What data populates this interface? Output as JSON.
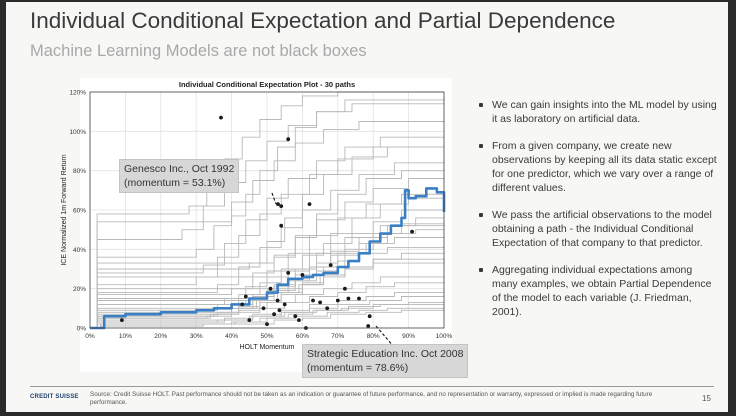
{
  "slide": {
    "title": "Individual Conditional Expectation and Partial Dependence",
    "subtitle": "Machine Learning Models are not black boxes",
    "page_number": "15",
    "logo_text": "CREDIT SUISSE",
    "source_note": "Source: Credit Suisse HOLT. Past performance should not be taken as an indication or guarantee of future performance, and no representation or warranty, expressed or implied is made regarding future performance."
  },
  "bullets": [
    "We can gain insights into the ML model by using it as laboratory on artificial data.",
    "From a given company, we create new observations by keeping all its data static except for one predictor, which we vary over a range of different values.",
    "We pass the artificial observations to the model obtaining a path - the Individual Conditional Expectation of that company to that predictor.",
    "Aggregating individual expectations among many examples, we obtain Partial Dependence of the model to each variable (J. Friedman, 2001)."
  ],
  "callouts": {
    "genesco": {
      "line1": "Genesco Inc., Oct 1992",
      "line2": "(momentum = 53.1%)"
    },
    "strategic": {
      "line1": "Strategic Education Inc. Oct 2008",
      "line2": "(momentum = 78.6%)"
    }
  },
  "colors": {
    "ice_lines": "#b8b8b8",
    "pdp_line": "#3a7fc4",
    "points": "#1a1a1a",
    "text": "#3a3a3a"
  },
  "chart_data": {
    "type": "line",
    "title": "Individual Conditional Expectation Plot - 30 paths",
    "xlabel": "HOLT Momentum",
    "ylabel": "ICE Normalized 1m Forward Return",
    "xlim": [
      0,
      100
    ],
    "ylim": [
      0,
      120
    ],
    "x_ticks": [
      "0%",
      "10%",
      "20%",
      "30%",
      "40%",
      "50%",
      "60%",
      "70%",
      "80%",
      "90%",
      "100%"
    ],
    "y_ticks": [
      "0%",
      "20%",
      "40%",
      "60%",
      "80%",
      "100%",
      "120%"
    ],
    "grid": true,
    "partial_dependence": {
      "x": [
        0,
        4,
        10,
        20,
        30,
        35,
        40,
        45,
        50,
        53,
        56,
        60,
        63,
        66,
        70,
        73,
        76,
        79,
        82,
        85,
        88,
        89,
        90,
        92,
        95,
        98,
        100
      ],
      "y": [
        0,
        6,
        7,
        8,
        9,
        10,
        12,
        15,
        18,
        22,
        25,
        26,
        27,
        28,
        31,
        34,
        38,
        44,
        48,
        52,
        56,
        70,
        66,
        67,
        71,
        69,
        59
      ]
    },
    "ice_paths": [
      {
        "x": [
          0,
          2,
          30,
          38,
          46,
          55,
          64,
          73,
          82,
          100
        ],
        "y": [
          0,
          3,
          3,
          4,
          6,
          8,
          9,
          11,
          12,
          14
        ]
      },
      {
        "x": [
          0,
          2,
          40,
          48,
          56,
          63,
          71,
          80,
          90,
          100
        ],
        "y": [
          0,
          2,
          3,
          5,
          7,
          9,
          10,
          12,
          13,
          13
        ]
      },
      {
        "x": [
          0,
          3,
          32,
          41,
          50,
          58,
          67,
          76,
          84,
          100
        ],
        "y": [
          0,
          1,
          2,
          3,
          5,
          6,
          8,
          9,
          10,
          11
        ]
      },
      {
        "x": [
          0,
          3,
          44,
          52,
          60,
          68,
          78,
          88,
          100
        ],
        "y": [
          0,
          2,
          2,
          4,
          5,
          7,
          8,
          9,
          10
        ]
      },
      {
        "x": [
          0,
          2,
          36,
          45,
          54,
          62,
          70,
          79,
          88,
          100
        ],
        "y": [
          0,
          3,
          4,
          6,
          8,
          10,
          12,
          14,
          16,
          17
        ]
      },
      {
        "x": [
          0,
          2,
          33,
          40,
          48,
          55,
          62,
          70,
          78,
          86,
          100
        ],
        "y": [
          0,
          5,
          6,
          8,
          10,
          13,
          16,
          18,
          21,
          23,
          24
        ]
      },
      {
        "x": [
          0,
          2,
          38,
          46,
          54,
          62,
          70,
          78,
          86,
          100
        ],
        "y": [
          0,
          4,
          5,
          7,
          9,
          12,
          14,
          16,
          18,
          20
        ]
      },
      {
        "x": [
          0,
          2,
          36,
          42,
          48,
          54,
          60,
          66,
          72,
          80,
          100
        ],
        "y": [
          0,
          6,
          8,
          11,
          14,
          18,
          22,
          26,
          30,
          33,
          35
        ]
      },
      {
        "x": [
          0,
          2,
          35,
          42,
          50,
          58,
          66,
          74,
          82,
          100
        ],
        "y": [
          0,
          6,
          7,
          10,
          13,
          17,
          20,
          23,
          26,
          27
        ]
      },
      {
        "x": [
          0,
          2,
          40,
          47,
          53,
          59,
          65,
          72,
          80,
          100
        ],
        "y": [
          0,
          8,
          10,
          14,
          18,
          22,
          27,
          31,
          35,
          36
        ]
      },
      {
        "x": [
          0,
          2,
          34,
          40,
          46,
          52,
          58,
          64,
          70,
          76,
          84,
          100
        ],
        "y": [
          0,
          5,
          7,
          10,
          14,
          19,
          24,
          29,
          34,
          38,
          41,
          42
        ]
      },
      {
        "x": [
          0,
          2,
          42,
          48,
          54,
          60,
          66,
          72,
          80,
          88,
          100
        ],
        "y": [
          0,
          7,
          9,
          13,
          17,
          22,
          27,
          31,
          35,
          38,
          39
        ]
      },
      {
        "x": [
          0,
          2,
          40,
          46,
          52,
          58,
          64,
          70,
          78,
          86,
          100
        ],
        "y": [
          0,
          10,
          12,
          16,
          21,
          27,
          33,
          38,
          43,
          46,
          47
        ]
      },
      {
        "x": [
          0,
          2,
          36,
          42,
          48,
          54,
          60,
          66,
          74,
          82,
          100
        ],
        "y": [
          0,
          9,
          12,
          17,
          23,
          30,
          37,
          43,
          48,
          52,
          53
        ]
      },
      {
        "x": [
          0,
          2,
          44,
          50,
          56,
          62,
          68,
          76,
          84,
          92,
          100
        ],
        "y": [
          0,
          12,
          14,
          19,
          25,
          31,
          37,
          43,
          48,
          50,
          50
        ]
      },
      {
        "x": [
          0,
          2,
          50,
          56,
          62,
          68,
          76,
          84,
          92,
          100
        ],
        "y": [
          0,
          15,
          18,
          24,
          31,
          39,
          46,
          52,
          56,
          57
        ]
      },
      {
        "x": [
          0,
          2,
          46,
          52,
          58,
          64,
          72,
          80,
          88,
          100
        ],
        "y": [
          0,
          14,
          17,
          22,
          30,
          38,
          46,
          54,
          60,
          62
        ]
      },
      {
        "x": [
          0,
          2,
          38,
          44,
          50,
          56,
          62,
          70,
          78,
          88,
          100
        ],
        "y": [
          0,
          12,
          15,
          21,
          29,
          38,
          47,
          56,
          63,
          68,
          70
        ]
      },
      {
        "x": [
          0,
          2,
          40,
          46,
          52,
          58,
          64,
          72,
          80,
          90,
          100
        ],
        "y": [
          0,
          17,
          20,
          28,
          37,
          46,
          55,
          64,
          71,
          76,
          78
        ]
      },
      {
        "x": [
          0,
          2,
          36,
          42,
          48,
          54,
          60,
          68,
          76,
          86,
          100
        ],
        "y": [
          0,
          18,
          22,
          31,
          41,
          51,
          60,
          70,
          78,
          84,
          86
        ]
      },
      {
        "x": [
          0,
          2,
          30,
          36,
          42,
          48,
          54,
          62,
          70,
          80,
          100
        ],
        "y": [
          0,
          22,
          26,
          36,
          47,
          58,
          68,
          78,
          86,
          92,
          94
        ]
      },
      {
        "x": [
          0,
          2,
          32,
          38,
          44,
          50,
          56,
          64,
          72,
          82,
          100
        ],
        "y": [
          0,
          28,
          32,
          43,
          55,
          66,
          76,
          85,
          92,
          97,
          98
        ]
      },
      {
        "x": [
          0,
          2,
          30,
          35,
          40,
          46,
          52,
          58,
          66,
          76,
          100
        ],
        "y": [
          0,
          36,
          40,
          52,
          64,
          75,
          85,
          94,
          101,
          105,
          106
        ]
      },
      {
        "x": [
          0,
          2,
          26,
          32,
          38,
          44,
          50,
          56,
          64,
          74,
          100
        ],
        "y": [
          0,
          45,
          50,
          62,
          74,
          85,
          95,
          103,
          110,
          114,
          115
        ]
      },
      {
        "x": [
          0,
          2,
          28,
          33,
          38,
          43,
          48,
          54,
          60,
          70,
          100
        ],
        "y": [
          0,
          58,
          62,
          74,
          86,
          97,
          106,
          113,
          118,
          120,
          120
        ]
      },
      {
        "x": [
          0,
          2,
          40,
          44,
          48,
          53,
          58,
          64,
          72,
          100
        ],
        "y": [
          0,
          54,
          57,
          68,
          80,
          92,
          102,
          110,
          116,
          118
        ]
      },
      {
        "x": [
          0,
          2,
          45,
          50,
          55,
          60,
          66,
          74,
          84,
          100
        ],
        "y": [
          0,
          30,
          33,
          44,
          56,
          68,
          78,
          87,
          92,
          93
        ]
      },
      {
        "x": [
          0,
          2,
          52,
          58,
          64,
          70,
          78,
          88,
          100
        ],
        "y": [
          0,
          33,
          36,
          47,
          58,
          68,
          76,
          80,
          81
        ]
      },
      {
        "x": [
          0,
          2,
          56,
          62,
          68,
          74,
          82,
          90,
          100
        ],
        "y": [
          0,
          26,
          29,
          38,
          48,
          56,
          63,
          66,
          67
        ]
      },
      {
        "x": [
          0,
          2,
          60,
          66,
          72,
          80,
          88,
          100
        ],
        "y": [
          0,
          20,
          23,
          31,
          40,
          48,
          53,
          54
        ]
      }
    ],
    "marked_points": [
      {
        "x": 9,
        "y": 4
      },
      {
        "x": 37,
        "y": 107
      },
      {
        "x": 43,
        "y": 12
      },
      {
        "x": 44,
        "y": 16
      },
      {
        "x": 45,
        "y": 4
      },
      {
        "x": 49,
        "y": 10
      },
      {
        "x": 50,
        "y": 2
      },
      {
        "x": 51,
        "y": 20
      },
      {
        "x": 52,
        "y": 7
      },
      {
        "x": 53,
        "y": 14
      },
      {
        "x": 53.1,
        "y": 63
      },
      {
        "x": 53.5,
        "y": 9
      },
      {
        "x": 54,
        "y": 62
      },
      {
        "x": 54,
        "y": 52
      },
      {
        "x": 55,
        "y": 12
      },
      {
        "x": 56,
        "y": 28
      },
      {
        "x": 56,
        "y": 96
      },
      {
        "x": 58,
        "y": 6
      },
      {
        "x": 59,
        "y": 4
      },
      {
        "x": 60,
        "y": 27
      },
      {
        "x": 61,
        "y": 0
      },
      {
        "x": 62,
        "y": 63
      },
      {
        "x": 63,
        "y": 14
      },
      {
        "x": 65,
        "y": 13
      },
      {
        "x": 67,
        "y": 10
      },
      {
        "x": 68,
        "y": 32
      },
      {
        "x": 70,
        "y": 14
      },
      {
        "x": 72,
        "y": 20
      },
      {
        "x": 73,
        "y": 15
      },
      {
        "x": 76,
        "y": 15
      },
      {
        "x": 78.6,
        "y": 1
      },
      {
        "x": 79,
        "y": 6
      },
      {
        "x": 91,
        "y": 49
      }
    ]
  }
}
